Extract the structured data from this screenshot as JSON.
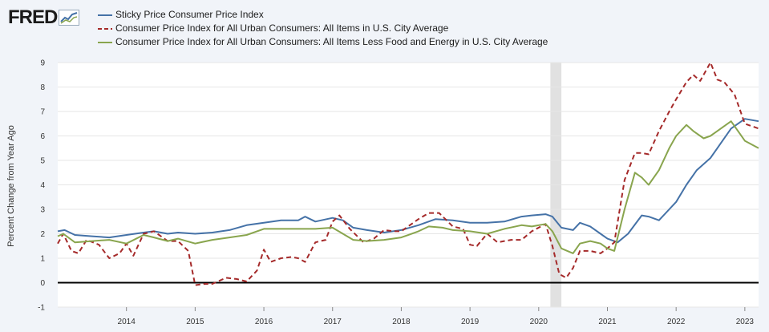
{
  "logo": {
    "text": "FRED",
    "icon": "chart-line-icon"
  },
  "colors": {
    "blue": "#4572a7",
    "red": "#a52a2a",
    "green": "#89a54e",
    "recession": "#e1e1e1",
    "grid": "#e6e6e6"
  },
  "chart_data": {
    "type": "line",
    "title": "",
    "xlabel": "",
    "ylabel": "Percent Change from Year Ago",
    "ylim": [
      -1,
      9
    ],
    "xlim": [
      2013.0,
      2023.2
    ],
    "yticks": [
      "-1",
      "0",
      "1",
      "2",
      "3",
      "4",
      "5",
      "6",
      "7",
      "8",
      "9"
    ],
    "xticks": [
      "2014",
      "2015",
      "2016",
      "2017",
      "2018",
      "2019",
      "2020",
      "2021",
      "2022",
      "2023"
    ],
    "recession": [
      2020.17,
      2020.33
    ],
    "series": [
      {
        "name": "Sticky Price Consumer Price Index",
        "style": "solid",
        "color": "#4572a7",
        "points": [
          [
            2013.0,
            2.1
          ],
          [
            2013.1,
            2.15
          ],
          [
            2013.25,
            1.95
          ],
          [
            2013.5,
            1.9
          ],
          [
            2013.75,
            1.85
          ],
          [
            2014.0,
            1.95
          ],
          [
            2014.25,
            2.05
          ],
          [
            2014.4,
            2.1
          ],
          [
            2014.6,
            2.0
          ],
          [
            2014.75,
            2.05
          ],
          [
            2015.0,
            2.0
          ],
          [
            2015.25,
            2.05
          ],
          [
            2015.5,
            2.15
          ],
          [
            2015.75,
            2.35
          ],
          [
            2016.0,
            2.45
          ],
          [
            2016.25,
            2.55
          ],
          [
            2016.5,
            2.55
          ],
          [
            2016.6,
            2.7
          ],
          [
            2016.75,
            2.5
          ],
          [
            2017.0,
            2.65
          ],
          [
            2017.15,
            2.55
          ],
          [
            2017.3,
            2.25
          ],
          [
            2017.5,
            2.15
          ],
          [
            2017.75,
            2.05
          ],
          [
            2018.0,
            2.15
          ],
          [
            2018.25,
            2.35
          ],
          [
            2018.5,
            2.6
          ],
          [
            2018.75,
            2.55
          ],
          [
            2019.0,
            2.45
          ],
          [
            2019.25,
            2.45
          ],
          [
            2019.5,
            2.5
          ],
          [
            2019.75,
            2.7
          ],
          [
            2019.9,
            2.75
          ],
          [
            2020.1,
            2.8
          ],
          [
            2020.2,
            2.7
          ],
          [
            2020.33,
            2.25
          ],
          [
            2020.5,
            2.15
          ],
          [
            2020.6,
            2.45
          ],
          [
            2020.75,
            2.3
          ],
          [
            2020.9,
            2.0
          ],
          [
            2021.0,
            1.8
          ],
          [
            2021.15,
            1.65
          ],
          [
            2021.3,
            2.0
          ],
          [
            2021.5,
            2.75
          ],
          [
            2021.6,
            2.7
          ],
          [
            2021.75,
            2.55
          ],
          [
            2021.9,
            3.0
          ],
          [
            2022.0,
            3.3
          ],
          [
            2022.15,
            4.0
          ],
          [
            2022.3,
            4.6
          ],
          [
            2022.5,
            5.1
          ],
          [
            2022.65,
            5.7
          ],
          [
            2022.8,
            6.3
          ],
          [
            2023.0,
            6.7
          ],
          [
            2023.2,
            6.6
          ]
        ]
      },
      {
        "name": "Consumer Price Index for All Urban Consumers: All Items in U.S. City Average",
        "style": "dashed",
        "color": "#a52a2a",
        "points": [
          [
            2013.0,
            1.6
          ],
          [
            2013.08,
            2.0
          ],
          [
            2013.2,
            1.3
          ],
          [
            2013.3,
            1.2
          ],
          [
            2013.42,
            1.75
          ],
          [
            2013.6,
            1.55
          ],
          [
            2013.75,
            1.0
          ],
          [
            2013.9,
            1.2
          ],
          [
            2014.0,
            1.6
          ],
          [
            2014.1,
            1.1
          ],
          [
            2014.25,
            2.0
          ],
          [
            2014.4,
            2.1
          ],
          [
            2014.6,
            1.7
          ],
          [
            2014.75,
            1.7
          ],
          [
            2014.9,
            1.3
          ],
          [
            2015.0,
            -0.1
          ],
          [
            2015.15,
            -0.05
          ],
          [
            2015.25,
            -0.05
          ],
          [
            2015.45,
            0.2
          ],
          [
            2015.6,
            0.15
          ],
          [
            2015.75,
            0.05
          ],
          [
            2015.9,
            0.5
          ],
          [
            2016.0,
            1.35
          ],
          [
            2016.1,
            0.85
          ],
          [
            2016.25,
            1.0
          ],
          [
            2016.4,
            1.05
          ],
          [
            2016.5,
            1.0
          ],
          [
            2016.6,
            0.85
          ],
          [
            2016.75,
            1.65
          ],
          [
            2016.9,
            1.75
          ],
          [
            2017.0,
            2.5
          ],
          [
            2017.1,
            2.75
          ],
          [
            2017.25,
            2.2
          ],
          [
            2017.45,
            1.65
          ],
          [
            2017.6,
            1.8
          ],
          [
            2017.75,
            2.15
          ],
          [
            2017.9,
            2.1
          ],
          [
            2018.0,
            2.1
          ],
          [
            2018.25,
            2.6
          ],
          [
            2018.4,
            2.85
          ],
          [
            2018.55,
            2.85
          ],
          [
            2018.75,
            2.3
          ],
          [
            2018.9,
            2.2
          ],
          [
            2019.0,
            1.55
          ],
          [
            2019.1,
            1.5
          ],
          [
            2019.25,
            2.0
          ],
          [
            2019.4,
            1.65
          ],
          [
            2019.6,
            1.75
          ],
          [
            2019.75,
            1.75
          ],
          [
            2019.9,
            2.1
          ],
          [
            2020.1,
            2.4
          ],
          [
            2020.2,
            1.5
          ],
          [
            2020.3,
            0.35
          ],
          [
            2020.4,
            0.2
          ],
          [
            2020.5,
            0.6
          ],
          [
            2020.6,
            1.3
          ],
          [
            2020.75,
            1.3
          ],
          [
            2020.9,
            1.2
          ],
          [
            2021.0,
            1.4
          ],
          [
            2021.1,
            1.65
          ],
          [
            2021.25,
            4.2
          ],
          [
            2021.4,
            5.3
          ],
          [
            2021.5,
            5.3
          ],
          [
            2021.6,
            5.25
          ],
          [
            2021.75,
            6.2
          ],
          [
            2021.9,
            7.0
          ],
          [
            2022.0,
            7.5
          ],
          [
            2022.15,
            8.2
          ],
          [
            2022.25,
            8.5
          ],
          [
            2022.35,
            8.25
          ],
          [
            2022.5,
            9.0
          ],
          [
            2022.6,
            8.3
          ],
          [
            2022.7,
            8.2
          ],
          [
            2022.85,
            7.7
          ],
          [
            2023.0,
            6.5
          ],
          [
            2023.2,
            6.3
          ]
        ]
      },
      {
        "name": "Consumer Price Index for All Urban Consumers: All Items Less Food and Energy in U.S. City Average",
        "style": "solid",
        "color": "#89a54e",
        "points": [
          [
            2013.0,
            1.9
          ],
          [
            2013.08,
            2.0
          ],
          [
            2013.25,
            1.65
          ],
          [
            2013.5,
            1.7
          ],
          [
            2013.75,
            1.75
          ],
          [
            2014.0,
            1.6
          ],
          [
            2014.25,
            1.95
          ],
          [
            2014.4,
            1.85
          ],
          [
            2014.6,
            1.7
          ],
          [
            2014.75,
            1.8
          ],
          [
            2015.0,
            1.6
          ],
          [
            2015.25,
            1.75
          ],
          [
            2015.5,
            1.85
          ],
          [
            2015.75,
            1.95
          ],
          [
            2016.0,
            2.2
          ],
          [
            2016.25,
            2.2
          ],
          [
            2016.5,
            2.2
          ],
          [
            2016.75,
            2.2
          ],
          [
            2017.0,
            2.25
          ],
          [
            2017.15,
            2.0
          ],
          [
            2017.3,
            1.75
          ],
          [
            2017.5,
            1.7
          ],
          [
            2017.75,
            1.75
          ],
          [
            2018.0,
            1.85
          ],
          [
            2018.25,
            2.1
          ],
          [
            2018.4,
            2.3
          ],
          [
            2018.6,
            2.25
          ],
          [
            2018.75,
            2.15
          ],
          [
            2019.0,
            2.1
          ],
          [
            2019.25,
            2.0
          ],
          [
            2019.5,
            2.2
          ],
          [
            2019.75,
            2.35
          ],
          [
            2019.9,
            2.3
          ],
          [
            2020.1,
            2.4
          ],
          [
            2020.2,
            2.1
          ],
          [
            2020.33,
            1.4
          ],
          [
            2020.5,
            1.2
          ],
          [
            2020.6,
            1.6
          ],
          [
            2020.75,
            1.7
          ],
          [
            2020.9,
            1.6
          ],
          [
            2021.0,
            1.4
          ],
          [
            2021.1,
            1.3
          ],
          [
            2021.25,
            3.0
          ],
          [
            2021.4,
            4.5
          ],
          [
            2021.5,
            4.3
          ],
          [
            2021.6,
            4.0
          ],
          [
            2021.75,
            4.6
          ],
          [
            2021.9,
            5.5
          ],
          [
            2022.0,
            6.0
          ],
          [
            2022.15,
            6.45
          ],
          [
            2022.25,
            6.2
          ],
          [
            2022.4,
            5.9
          ],
          [
            2022.5,
            6.0
          ],
          [
            2022.65,
            6.3
          ],
          [
            2022.8,
            6.6
          ],
          [
            2023.0,
            5.8
          ],
          [
            2023.2,
            5.5
          ]
        ]
      }
    ]
  }
}
